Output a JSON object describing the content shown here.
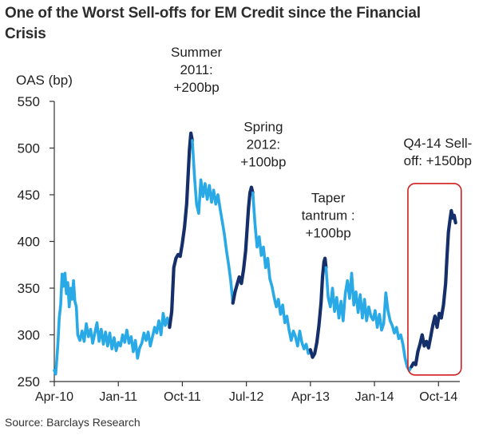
{
  "page": {
    "title_line1": "One of the Worst Sell-offs for EM Credit since the Financial",
    "title_line2": "Crisis",
    "source": "Source: Barclays Research"
  },
  "colors": {
    "light_series": "#29a9e6",
    "dark_series": "#152f6b",
    "highlight_box": "#d11f1f",
    "axis": "#333333"
  },
  "chart_data": {
    "type": "line",
    "title": "One of the Worst Sell-offs for EM Credit since the Financial Crisis",
    "ylabel": "OAS (bp)",
    "xlabel": "",
    "ylim": [
      250,
      550
    ],
    "xlim": [
      0,
      57
    ],
    "x_unit": "months since Apr-10",
    "yticks": [
      250,
      300,
      350,
      400,
      450,
      500,
      550
    ],
    "xticks": [
      {
        "x": 0,
        "label": "Apr-10"
      },
      {
        "x": 9,
        "label": "Jan-11"
      },
      {
        "x": 18,
        "label": "Oct-11"
      },
      {
        "x": 27,
        "label": "Jul-12"
      },
      {
        "x": 36,
        "label": "Apr-13"
      },
      {
        "x": 45,
        "label": "Jan-14"
      },
      {
        "x": 54,
        "label": "Oct-14"
      }
    ],
    "series": [
      {
        "name": "EM credit OAS",
        "color": "#29a9e6",
        "points": [
          [
            0.0,
            262
          ],
          [
            0.2,
            258
          ],
          [
            0.5,
            290
          ],
          [
            0.7,
            318
          ],
          [
            0.9,
            332
          ],
          [
            1.1,
            365
          ],
          [
            1.3,
            352
          ],
          [
            1.5,
            366
          ],
          [
            1.7,
            344
          ],
          [
            1.9,
            356
          ],
          [
            2.1,
            330
          ],
          [
            2.3,
            350
          ],
          [
            2.5,
            338
          ],
          [
            2.7,
            358
          ],
          [
            2.9,
            336
          ],
          [
            3.1,
            330
          ],
          [
            3.3,
            300
          ],
          [
            3.6,
            294
          ],
          [
            3.9,
            304
          ],
          [
            4.2,
            293
          ],
          [
            4.5,
            312
          ],
          [
            4.8,
            298
          ],
          [
            5.1,
            306
          ],
          [
            5.4,
            291
          ],
          [
            5.7,
            302
          ],
          [
            6.0,
            313
          ],
          [
            6.3,
            293
          ],
          [
            6.6,
            306
          ],
          [
            6.9,
            290
          ],
          [
            7.2,
            303
          ],
          [
            7.5,
            288
          ],
          [
            7.8,
            302
          ],
          [
            8.1,
            285
          ],
          [
            8.4,
            297
          ],
          [
            8.7,
            283
          ],
          [
            9.0,
            292
          ],
          [
            9.3,
            288
          ],
          [
            9.6,
            300
          ],
          [
            9.9,
            292
          ],
          [
            10.2,
            305
          ],
          [
            10.5,
            291
          ],
          [
            10.8,
            298
          ],
          [
            11.1,
            282
          ],
          [
            11.4,
            294
          ],
          [
            11.7,
            275
          ],
          [
            12.0,
            286
          ],
          [
            12.3,
            291
          ],
          [
            12.6,
            302
          ],
          [
            12.9,
            294
          ],
          [
            13.2,
            303
          ],
          [
            13.5,
            288
          ],
          [
            13.8,
            298
          ],
          [
            14.1,
            308
          ],
          [
            14.4,
            302
          ],
          [
            14.7,
            315
          ],
          [
            15.0,
            300
          ],
          [
            15.3,
            323
          ],
          [
            15.6,
            310
          ],
          [
            15.9,
            318
          ],
          [
            16.2,
            308
          ]
        ]
      },
      {
        "name": "Summer 2011 sell-off",
        "color": "#152f6b",
        "points": [
          [
            16.2,
            308
          ],
          [
            16.5,
            325
          ],
          [
            16.8,
            372
          ],
          [
            17.1,
            382
          ],
          [
            17.4,
            386
          ],
          [
            17.7,
            384
          ],
          [
            18.0,
            398
          ],
          [
            18.3,
            415
          ],
          [
            18.6,
            440
          ],
          [
            18.8,
            470
          ],
          [
            19.0,
            498
          ],
          [
            19.2,
            516
          ],
          [
            19.4,
            508
          ]
        ]
      },
      {
        "name": "EM credit OAS",
        "color": "#29a9e6",
        "points": [
          [
            19.4,
            508
          ],
          [
            19.7,
            470
          ],
          [
            20.0,
            440
          ],
          [
            20.3,
            430
          ],
          [
            20.6,
            466
          ],
          [
            20.9,
            448
          ],
          [
            21.2,
            462
          ],
          [
            21.5,
            445
          ],
          [
            21.8,
            460
          ],
          [
            22.1,
            442
          ],
          [
            22.4,
            455
          ],
          [
            22.7,
            440
          ],
          [
            23.0,
            450
          ],
          [
            23.3,
            435
          ],
          [
            23.6,
            422
          ],
          [
            23.9,
            408
          ],
          [
            24.2,
            390
          ],
          [
            24.5,
            375
          ],
          [
            24.8,
            358
          ],
          [
            25.1,
            334
          ]
        ]
      },
      {
        "name": "Spring 2012 sell-off",
        "color": "#152f6b",
        "points": [
          [
            25.1,
            334
          ],
          [
            25.4,
            346
          ],
          [
            25.7,
            354
          ],
          [
            26.0,
            362
          ],
          [
            26.3,
            355
          ],
          [
            26.6,
            370
          ],
          [
            26.9,
            390
          ],
          [
            27.1,
            413
          ],
          [
            27.3,
            436
          ],
          [
            27.5,
            452
          ],
          [
            27.7,
            458
          ],
          [
            27.9,
            452
          ]
        ]
      },
      {
        "name": "EM credit OAS",
        "color": "#29a9e6",
        "points": [
          [
            27.9,
            452
          ],
          [
            28.2,
            420
          ],
          [
            28.5,
            394
          ],
          [
            28.8,
            405
          ],
          [
            29.1,
            385
          ],
          [
            29.4,
            394
          ],
          [
            29.7,
            372
          ],
          [
            30.0,
            382
          ],
          [
            30.3,
            360
          ],
          [
            30.6,
            352
          ],
          [
            30.9,
            340
          ],
          [
            31.2,
            330
          ],
          [
            31.5,
            338
          ],
          [
            31.8,
            322
          ],
          [
            32.1,
            332
          ],
          [
            32.4,
            313
          ],
          [
            32.7,
            320
          ],
          [
            33.0,
            305
          ],
          [
            33.3,
            294
          ],
          [
            33.6,
            304
          ],
          [
            33.9,
            298
          ],
          [
            34.2,
            288
          ],
          [
            34.5,
            304
          ],
          [
            34.8,
            292
          ],
          [
            35.1,
            285
          ],
          [
            35.4,
            290
          ],
          [
            35.7,
            280
          ],
          [
            36.0,
            284
          ]
        ]
      },
      {
        "name": "Taper tantrum",
        "color": "#152f6b",
        "points": [
          [
            36.0,
            284
          ],
          [
            36.3,
            276
          ],
          [
            36.6,
            280
          ],
          [
            36.9,
            292
          ],
          [
            37.2,
            310
          ],
          [
            37.5,
            335
          ],
          [
            37.7,
            362
          ],
          [
            37.9,
            378
          ],
          [
            38.05,
            382
          ],
          [
            38.2,
            372
          ]
        ]
      },
      {
        "name": "EM credit OAS",
        "color": "#29a9e6",
        "points": [
          [
            38.2,
            372
          ],
          [
            38.5,
            340
          ],
          [
            38.8,
            330
          ],
          [
            39.1,
            350
          ],
          [
            39.4,
            325
          ],
          [
            39.7,
            340
          ],
          [
            40.0,
            318
          ],
          [
            40.3,
            336
          ],
          [
            40.6,
            315
          ],
          [
            40.9,
            344
          ],
          [
            41.2,
            358
          ],
          [
            41.5,
            339
          ],
          [
            41.8,
            366
          ],
          [
            42.1,
            332
          ],
          [
            42.4,
            346
          ],
          [
            42.7,
            324
          ],
          [
            43.0,
            343
          ],
          [
            43.3,
            318
          ],
          [
            43.6,
            338
          ],
          [
            43.9,
            315
          ],
          [
            44.2,
            330
          ],
          [
            44.5,
            320
          ],
          [
            44.8,
            316
          ],
          [
            45.1,
            326
          ],
          [
            45.4,
            308
          ],
          [
            45.7,
            322
          ],
          [
            46.0,
            305
          ],
          [
            46.3,
            312
          ],
          [
            46.6,
            345
          ],
          [
            46.9,
            326
          ],
          [
            47.2,
            315
          ],
          [
            47.5,
            310
          ],
          [
            47.8,
            302
          ],
          [
            48.1,
            308
          ],
          [
            48.4,
            296
          ],
          [
            48.7,
            300
          ],
          [
            49.0,
            290
          ],
          [
            49.3,
            275
          ],
          [
            49.6,
            266
          ],
          [
            49.9,
            262
          ],
          [
            50.2,
            266
          ]
        ]
      },
      {
        "name": "Q4-14 sell-off",
        "color": "#152f6b",
        "points": [
          [
            50.2,
            266
          ],
          [
            50.5,
            270
          ],
          [
            50.8,
            268
          ],
          [
            51.1,
            282
          ],
          [
            51.4,
            290
          ],
          [
            51.7,
            300
          ],
          [
            52.0,
            288
          ],
          [
            52.3,
            293
          ],
          [
            52.6,
            286
          ],
          [
            52.9,
            298
          ],
          [
            53.2,
            310
          ],
          [
            53.5,
            320
          ],
          [
            53.8,
            308
          ],
          [
            54.1,
            323
          ],
          [
            54.4,
            318
          ],
          [
            54.7,
            332
          ],
          [
            55.0,
            355
          ],
          [
            55.2,
            385
          ],
          [
            55.4,
            410
          ],
          [
            55.6,
            422
          ],
          [
            55.8,
            433
          ],
          [
            56.0,
            425
          ],
          [
            56.2,
            428
          ],
          [
            56.4,
            420
          ]
        ]
      }
    ],
    "annotations": [
      {
        "lines": [
          "Summer",
          "2011:",
          "+200bp"
        ],
        "x": 19.2,
        "y": 516
      },
      {
        "lines": [
          "Spring",
          "2012:",
          "+100bp"
        ],
        "x": 27.7,
        "y": 458
      },
      {
        "lines": [
          "Taper",
          "tantrum :",
          "+100bp"
        ],
        "x": 38.05,
        "y": 382
      },
      {
        "lines": [
          "Q4-14 Sell-",
          "off: +150bp"
        ],
        "x": 55.8,
        "y": 433
      }
    ],
    "highlight": {
      "x_range": [
        49.7,
        57.2
      ],
      "y_range": [
        257,
        462
      ]
    }
  }
}
